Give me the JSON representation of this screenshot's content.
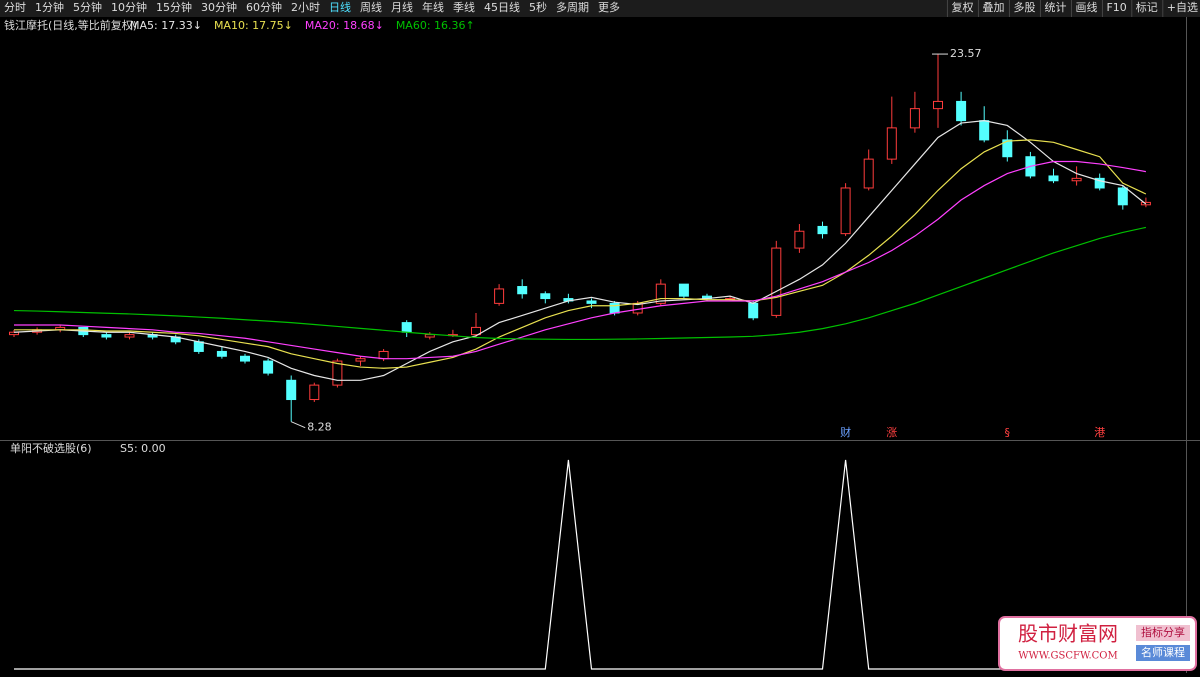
{
  "toolbar": {
    "left": [
      "分时",
      "1分钟",
      "5分钟",
      "10分钟",
      "15分钟",
      "30分钟",
      "60分钟",
      "2小时",
      "日线",
      "周线",
      "月线",
      "年线",
      "季线",
      "45日线",
      "5秒",
      "多周期",
      "更多"
    ],
    "active_index": 8,
    "right": [
      "复权",
      "叠加",
      "多股",
      "统计",
      "画线",
      "F10",
      "标记",
      "+自选"
    ]
  },
  "chart_data": [
    {
      "type": "candlestick",
      "title": "钱江摩托(日线,等比前复权)",
      "up_color": "#ff3c3c",
      "down_color": "#54ffff",
      "ylim": [
        7.6,
        25.07
      ],
      "ohlc": [
        [
          11.9,
          12.1,
          11.8,
          12.0
        ],
        [
          12.0,
          12.2,
          11.9,
          12.1
        ],
        [
          12.1,
          12.3,
          12.0,
          12.2
        ],
        [
          12.2,
          12.2,
          11.8,
          11.9
        ],
        [
          11.9,
          12.0,
          11.7,
          11.8
        ],
        [
          11.8,
          12.0,
          11.7,
          11.9
        ],
        [
          11.9,
          12.0,
          11.7,
          11.8
        ],
        [
          11.8,
          11.9,
          11.5,
          11.6
        ],
        [
          11.6,
          11.7,
          11.1,
          11.2
        ],
        [
          11.2,
          11.4,
          10.9,
          11.0
        ],
        [
          11.0,
          11.1,
          10.7,
          10.8
        ],
        [
          10.8,
          10.9,
          10.2,
          10.3
        ],
        [
          10.0,
          10.2,
          8.28,
          9.2
        ],
        [
          9.2,
          9.9,
          9.1,
          9.8
        ],
        [
          9.8,
          10.9,
          9.7,
          10.8
        ],
        [
          10.8,
          11.0,
          10.6,
          10.9
        ],
        [
          10.9,
          11.3,
          10.8,
          11.2
        ],
        [
          12.4,
          12.5,
          11.8,
          12.0
        ],
        [
          11.8,
          12.0,
          11.7,
          11.9
        ],
        [
          11.9,
          12.1,
          11.8,
          11.9
        ],
        [
          11.9,
          12.8,
          11.8,
          12.2
        ],
        [
          13.2,
          14.0,
          13.1,
          13.8
        ],
        [
          13.9,
          14.2,
          13.4,
          13.6
        ],
        [
          13.6,
          13.7,
          13.2,
          13.4
        ],
        [
          13.4,
          13.6,
          13.2,
          13.3
        ],
        [
          13.3,
          13.4,
          13.0,
          13.2
        ],
        [
          13.2,
          13.3,
          12.7,
          12.8
        ],
        [
          12.8,
          13.3,
          12.7,
          13.2
        ],
        [
          13.2,
          14.2,
          13.1,
          14.0
        ],
        [
          14.0,
          14.0,
          13.4,
          13.5
        ],
        [
          13.5,
          13.6,
          13.3,
          13.4
        ],
        [
          13.4,
          13.5,
          13.3,
          13.4
        ],
        [
          13.2,
          13.3,
          12.5,
          12.6
        ],
        [
          12.7,
          15.8,
          12.6,
          15.5
        ],
        [
          15.5,
          16.5,
          15.3,
          16.2
        ],
        [
          16.4,
          16.6,
          15.9,
          16.1
        ],
        [
          16.1,
          18.2,
          16.0,
          18.0
        ],
        [
          18.0,
          19.6,
          17.9,
          19.2
        ],
        [
          19.2,
          21.8,
          19.0,
          20.5
        ],
        [
          20.5,
          22.0,
          20.3,
          21.3
        ],
        [
          21.3,
          23.57,
          20.5,
          21.6
        ],
        [
          21.6,
          22.0,
          20.6,
          20.8
        ],
        [
          20.8,
          21.4,
          19.9,
          20.0
        ],
        [
          20.0,
          20.4,
          19.1,
          19.3
        ],
        [
          19.3,
          19.5,
          18.4,
          18.5
        ],
        [
          18.5,
          18.8,
          18.2,
          18.3
        ],
        [
          18.3,
          18.9,
          18.1,
          18.4
        ],
        [
          18.4,
          18.6,
          17.9,
          18.0
        ],
        [
          18.0,
          18.1,
          17.1,
          17.3
        ],
        [
          17.3,
          17.6,
          17.2,
          17.4
        ]
      ],
      "lines": [
        {
          "name": "MA5: 17.33↓",
          "color": "#e6e6e6",
          "values": [
            12.0,
            12.05,
            12.1,
            12.05,
            12.0,
            12.0,
            11.9,
            11.8,
            11.6,
            11.4,
            11.2,
            10.95,
            10.5,
            10.2,
            10.0,
            10.0,
            10.2,
            10.7,
            11.2,
            11.6,
            11.85,
            12.4,
            12.7,
            13.0,
            13.3,
            13.45,
            13.25,
            13.15,
            13.3,
            13.35,
            13.4,
            13.5,
            13.2,
            13.7,
            14.2,
            14.8,
            15.7,
            16.8,
            17.9,
            19.0,
            20.1,
            20.7,
            20.8,
            20.6,
            19.9,
            19.1,
            18.6,
            18.3,
            18.1,
            17.33
          ]
        },
        {
          "name": "MA10: 17.75↓",
          "color": "#e8e050",
          "values": [
            12.1,
            12.1,
            12.1,
            12.1,
            12.05,
            12.05,
            12.0,
            11.95,
            11.85,
            11.7,
            11.55,
            11.4,
            11.1,
            10.9,
            10.7,
            10.55,
            10.5,
            10.55,
            10.75,
            10.95,
            11.3,
            11.8,
            12.2,
            12.6,
            12.9,
            13.1,
            13.1,
            13.2,
            13.4,
            13.4,
            13.35,
            13.35,
            13.3,
            13.45,
            13.7,
            13.95,
            14.5,
            15.2,
            16.0,
            16.9,
            17.9,
            18.8,
            19.5,
            19.95,
            20.0,
            19.9,
            19.6,
            19.3,
            18.2,
            17.75
          ]
        },
        {
          "name": "MA20: 18.68↓",
          "color": "#ff40ff",
          "values": [
            12.3,
            12.3,
            12.3,
            12.25,
            12.2,
            12.15,
            12.1,
            12.0,
            11.95,
            11.85,
            11.75,
            11.6,
            11.45,
            11.3,
            11.15,
            11.0,
            10.9,
            10.9,
            10.95,
            11.0,
            11.2,
            11.5,
            11.8,
            12.1,
            12.35,
            12.6,
            12.8,
            12.95,
            13.1,
            13.2,
            13.3,
            13.3,
            13.3,
            13.5,
            13.8,
            14.1,
            14.5,
            14.9,
            15.4,
            16.0,
            16.7,
            17.5,
            18.1,
            18.6,
            18.9,
            19.1,
            19.1,
            19.0,
            18.85,
            18.68
          ]
        },
        {
          "name": "MA60: 16.36↑",
          "color": "#00c000",
          "values": [
            12.9,
            12.88,
            12.85,
            12.82,
            12.79,
            12.76,
            12.72,
            12.68,
            12.63,
            12.58,
            12.52,
            12.46,
            12.4,
            12.32,
            12.24,
            12.16,
            12.08,
            12.0,
            11.92,
            11.85,
            11.78,
            11.74,
            11.72,
            11.71,
            11.7,
            11.7,
            11.71,
            11.72,
            11.74,
            11.76,
            11.78,
            11.8,
            11.83,
            11.9,
            12.0,
            12.15,
            12.35,
            12.6,
            12.9,
            13.2,
            13.55,
            13.9,
            14.25,
            14.6,
            14.95,
            15.3,
            15.6,
            15.9,
            16.15,
            16.36
          ]
        }
      ],
      "events": [
        {
          "label": "财",
          "index": 36,
          "color": "#6aa0ff"
        },
        {
          "label": "涨",
          "index": 38,
          "color": "#ff4040"
        },
        {
          "label": "§",
          "index": 43,
          "color": "#ff4040"
        },
        {
          "label": "港",
          "index": 47,
          "color": "#ff4040"
        }
      ]
    },
    {
      "type": "line",
      "title": "单阳不破选股(6)",
      "ylim": [
        0,
        1
      ],
      "series": [
        {
          "name": "S5: 0.00",
          "color": "#ffffff",
          "values": [
            0,
            0,
            0,
            0,
            0,
            0,
            0,
            0,
            0,
            0,
            0,
            0,
            0,
            0,
            0,
            0,
            0,
            0,
            0,
            0,
            0,
            0,
            0,
            0,
            1,
            0,
            0,
            0,
            0,
            0,
            0,
            0,
            0,
            0,
            0,
            0,
            1,
            0,
            0,
            0,
            0,
            0,
            0,
            0,
            0,
            0,
            0,
            0,
            0,
            0
          ]
        }
      ]
    }
  ],
  "watermark": {
    "name": "股市财富网",
    "url": "WWW.GSCFW.COM",
    "tag1": "指标分享",
    "tag2": "名师课程"
  }
}
